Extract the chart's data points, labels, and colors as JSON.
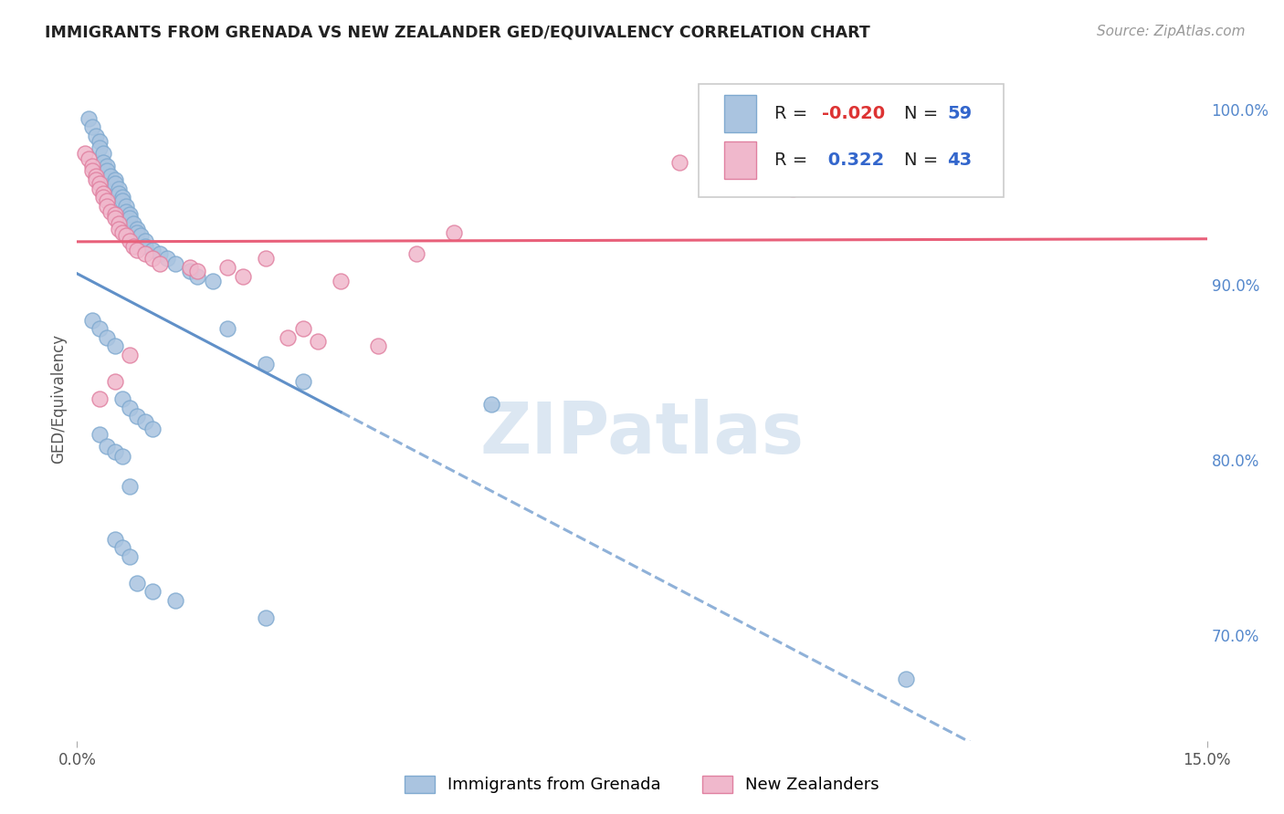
{
  "title": "IMMIGRANTS FROM GRENADA VS NEW ZEALANDER GED/EQUIVALENCY CORRELATION CHART",
  "source": "Source: ZipAtlas.com",
  "ylabel": "GED/Equivalency",
  "xlim": [
    0.0,
    15.0
  ],
  "ylim": [
    64.0,
    103.0
  ],
  "y_ticks": [
    70.0,
    80.0,
    90.0,
    100.0
  ],
  "legend_R1": "-0.020",
  "legend_N1": "59",
  "legend_R2": "0.322",
  "legend_N2": "43",
  "blue_color": "#aac4e0",
  "blue_edge": "#80aad0",
  "pink_color": "#f0b8cc",
  "pink_edge": "#e080a0",
  "blue_line_color": "#6090c8",
  "pink_line_color": "#e8607a",
  "blue_scatter_x": [
    0.15,
    0.2,
    0.25,
    0.3,
    0.3,
    0.35,
    0.35,
    0.4,
    0.4,
    0.45,
    0.5,
    0.5,
    0.55,
    0.55,
    0.6,
    0.6,
    0.65,
    0.65,
    0.7,
    0.7,
    0.75,
    0.8,
    0.8,
    0.85,
    0.9,
    0.9,
    1.0,
    1.1,
    1.2,
    1.3,
    1.5,
    1.6,
    1.8,
    2.0,
    2.5,
    3.0,
    5.5,
    0.2,
    0.3,
    0.4,
    0.5,
    0.6,
    0.7,
    0.8,
    0.9,
    1.0,
    0.3,
    0.4,
    0.5,
    0.6,
    0.7,
    0.5,
    0.6,
    0.7,
    0.8,
    1.0,
    1.3,
    2.5,
    11.0
  ],
  "blue_scatter_y": [
    99.5,
    99.0,
    98.5,
    98.2,
    97.8,
    97.5,
    97.0,
    96.8,
    96.5,
    96.2,
    96.0,
    95.8,
    95.5,
    95.2,
    95.0,
    94.8,
    94.5,
    94.2,
    94.0,
    93.8,
    93.5,
    93.2,
    93.0,
    92.8,
    92.5,
    92.2,
    92.0,
    91.8,
    91.5,
    91.2,
    90.8,
    90.5,
    90.2,
    87.5,
    85.5,
    84.5,
    83.2,
    88.0,
    87.5,
    87.0,
    86.5,
    83.5,
    83.0,
    82.5,
    82.2,
    81.8,
    81.5,
    80.8,
    80.5,
    80.2,
    78.5,
    75.5,
    75.0,
    74.5,
    73.0,
    72.5,
    72.0,
    71.0,
    67.5
  ],
  "pink_scatter_x": [
    0.1,
    0.15,
    0.2,
    0.2,
    0.25,
    0.25,
    0.3,
    0.3,
    0.35,
    0.35,
    0.4,
    0.4,
    0.45,
    0.5,
    0.5,
    0.55,
    0.55,
    0.6,
    0.65,
    0.7,
    0.75,
    0.8,
    0.9,
    1.0,
    1.1,
    1.5,
    1.6,
    2.0,
    2.2,
    2.5,
    3.5,
    4.5,
    5.0,
    8.0,
    9.5,
    9.8,
    3.0,
    4.0,
    2.8,
    3.2,
    0.3,
    0.5,
    0.7
  ],
  "pink_scatter_y": [
    97.5,
    97.2,
    96.8,
    96.5,
    96.2,
    96.0,
    95.8,
    95.5,
    95.2,
    95.0,
    94.8,
    94.5,
    94.2,
    94.0,
    93.8,
    93.5,
    93.2,
    93.0,
    92.8,
    92.5,
    92.2,
    92.0,
    91.8,
    91.5,
    91.2,
    91.0,
    90.8,
    91.0,
    90.5,
    91.5,
    90.2,
    91.8,
    93.0,
    97.0,
    95.5,
    96.0,
    87.5,
    86.5,
    87.0,
    86.8,
    83.5,
    84.5,
    86.0
  ],
  "watermark": "ZIPatlas",
  "background_color": "#ffffff",
  "grid_color": "#dddddd"
}
